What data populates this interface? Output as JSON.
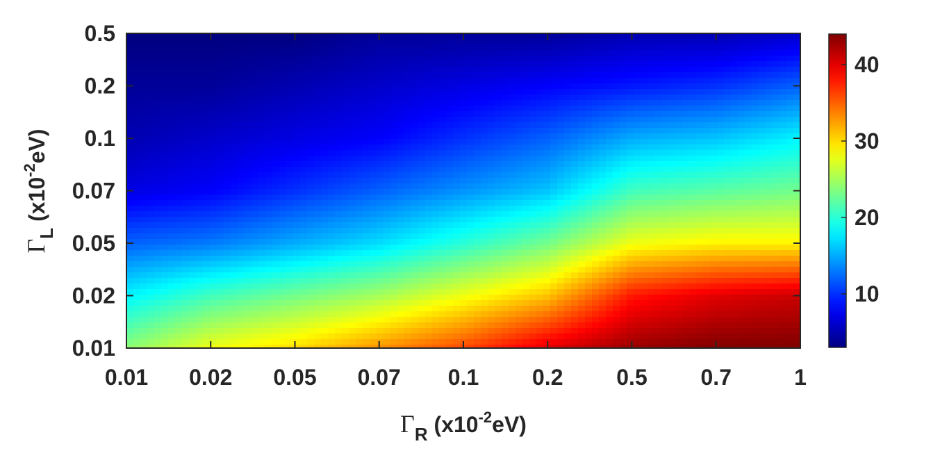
{
  "chart_data": {
    "type": "heatmap",
    "title": "",
    "xlabel": {
      "symbol": "Γ",
      "subscript": "R",
      "text_before": "(x10",
      "superscript": "-2",
      "text_after": "eV)"
    },
    "ylabel": {
      "symbol": "Γ",
      "subscript": "L",
      "text_before": "(x10",
      "superscript": "-2",
      "text_after": "eV)"
    },
    "x_ticks": [
      "0.01",
      "0.02",
      "0.05",
      "0.07",
      "0.1",
      "0.2",
      "0.5",
      "0.7",
      "1"
    ],
    "y_ticks": [
      "0.01",
      "0.02",
      "0.05",
      "0.07",
      "0.1",
      "0.2",
      "0.5"
    ],
    "colorbar": {
      "colormap": "jet",
      "range": [
        3,
        44
      ],
      "ticks": [
        10,
        20,
        30,
        40
      ]
    },
    "grid": false,
    "z_values": [
      [
        24,
        28,
        30,
        33,
        36,
        40,
        43,
        44,
        44
      ],
      [
        18,
        21,
        23,
        25,
        28,
        31,
        38,
        40,
        41
      ],
      [
        12,
        13,
        15,
        17,
        20,
        23,
        28,
        29,
        29
      ],
      [
        7,
        8,
        10,
        12,
        14,
        16,
        21,
        22,
        23
      ],
      [
        5,
        6,
        7,
        8,
        10,
        12,
        15,
        16,
        18
      ],
      [
        4,
        4,
        5,
        6,
        7,
        8,
        9,
        10,
        12
      ],
      [
        3,
        3,
        3,
        4,
        4,
        4,
        5,
        5,
        6
      ]
    ]
  }
}
